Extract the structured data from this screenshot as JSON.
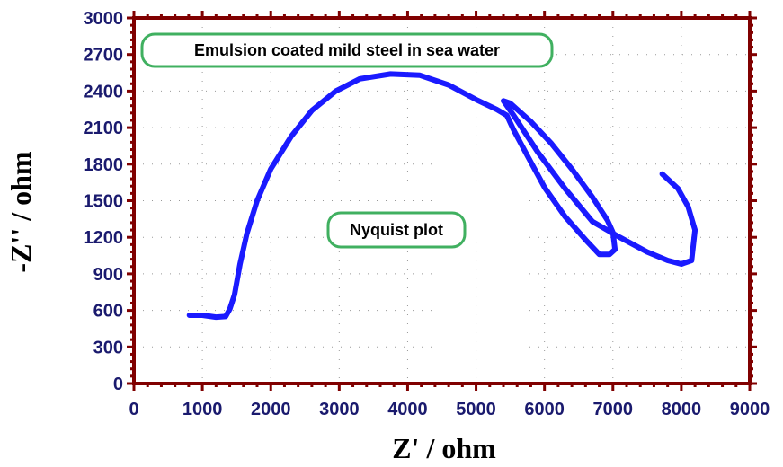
{
  "chart_data": {
    "type": "line",
    "title": "",
    "xlabel": "Z' / ohm",
    "ylabel": "-Z'' / ohm",
    "xlim": [
      0,
      9000
    ],
    "ylim": [
      0,
      3000
    ],
    "x_ticks": [
      "0",
      "1000",
      "2000",
      "3000",
      "4000",
      "5000",
      "6000",
      "7000",
      "8000",
      "9000"
    ],
    "y_ticks": [
      "0",
      "300",
      "600",
      "900",
      "1200",
      "1500",
      "1800",
      "2100",
      "2400",
      "2700",
      "3000"
    ],
    "grid": true,
    "annotations": [
      {
        "id": "subtitle",
        "text": "Emulsion coated mild steel in sea water"
      },
      {
        "id": "plotname",
        "text": "Nyquist plot"
      }
    ],
    "series": [
      {
        "color": "#1a1aff",
        "x": [
          810,
          1000,
          1200,
          1340,
          1400,
          1470,
          1550,
          1650,
          1800,
          2000,
          2300,
          2600,
          2950,
          3300,
          3750,
          4180,
          4600,
          5000,
          5300,
          5450,
          5550,
          5750,
          6000,
          6300,
          6600,
          6800,
          6950,
          7030,
          7000,
          6920,
          6700,
          6400,
          6100,
          5800,
          5500,
          5400,
          5550,
          5900,
          6300,
          6700,
          7100,
          7500,
          7800,
          8000,
          8150,
          8200,
          8100,
          7950,
          7720
        ],
        "y": [
          560,
          560,
          545,
          550,
          610,
          730,
          980,
          1230,
          1500,
          1760,
          2030,
          2240,
          2400,
          2500,
          2540,
          2530,
          2450,
          2330,
          2250,
          2200,
          2080,
          1870,
          1610,
          1370,
          1180,
          1060,
          1060,
          1100,
          1240,
          1340,
          1530,
          1760,
          1970,
          2150,
          2300,
          2320,
          2200,
          1900,
          1600,
          1330,
          1200,
          1080,
          1010,
          980,
          1010,
          1260,
          1450,
          1600,
          1720
        ]
      }
    ]
  },
  "colors": {
    "frame": "#800000",
    "tick_label": "#1a1a6e",
    "series": "#1a1aff",
    "annotation_border": "#40b060",
    "grid_dot": "#999999"
  }
}
